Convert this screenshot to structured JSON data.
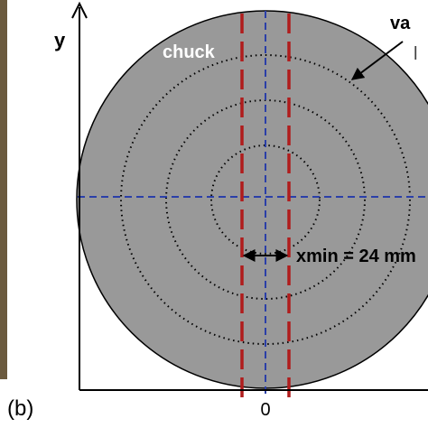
{
  "labels": {
    "y_axis": "y",
    "x_origin": "0",
    "panel": "(b)",
    "chuck": "chuck",
    "top_right": "va",
    "top_right_line2": "l",
    "xmin": "xmin = 24 mm"
  }
}
